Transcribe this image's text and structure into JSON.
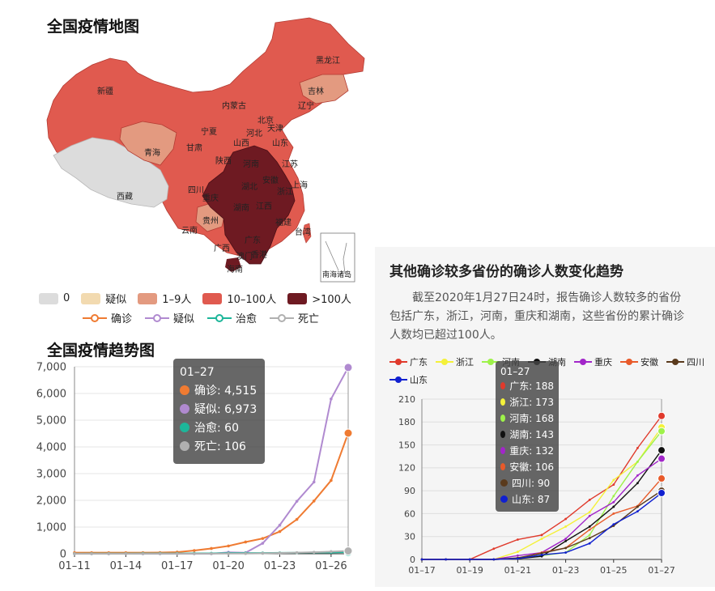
{
  "map": {
    "title": "全国疫情地图",
    "labels": [
      "黑龙江",
      "吉林",
      "辽宁",
      "内蒙古",
      "新疆",
      "宁夏",
      "河北",
      "北京",
      "天津",
      "山西",
      "甘肃",
      "山东",
      "陕西",
      "河南",
      "江苏",
      "青海",
      "西藏",
      "四川",
      "湖北",
      "安徽",
      "上海",
      "重庆",
      "浙江",
      "湖南",
      "江西",
      "贵州",
      "福建",
      "云南",
      "台湾",
      "广西",
      "广东",
      "香港",
      "澳门",
      "海南",
      "南海诸岛"
    ],
    "legend": [
      {
        "label": "0",
        "color": "#dcdcdc"
      },
      {
        "label": "疑似",
        "color": "#f2dab0"
      },
      {
        "label": "1–9人",
        "color": "#e39a80"
      },
      {
        "label": "10–100人",
        "color": "#e05a4f"
      },
      {
        "label": ">100人",
        "color": "#6e1a22"
      }
    ]
  },
  "trend": {
    "title": "全国疫情趋势图",
    "series_legend": [
      {
        "label": "确诊",
        "color": "#ef7b32"
      },
      {
        "label": "疑似",
        "color": "#b08ad0"
      },
      {
        "label": "治愈",
        "color": "#1db69a"
      },
      {
        "label": "死亡",
        "color": "#b0b0b0"
      }
    ],
    "tooltip": {
      "date": "01–27",
      "rows": [
        {
          "text": "确诊: 4,515",
          "color": "#ef7b32"
        },
        {
          "text": "疑似: 6,973",
          "color": "#b08ad0"
        },
        {
          "text": "治愈: 60",
          "color": "#1db69a"
        },
        {
          "text": "死亡: 106",
          "color": "#b0b0b0"
        }
      ]
    }
  },
  "provinces": {
    "title": "其他确诊较多省份的确诊人数变化趋势",
    "description": "截至2020年1月27日24时，报告确诊人数较多的省份包括广东，浙江，河南，重庆和湖南，这些省份的累计确诊人数均已超过100人。",
    "series_legend": [
      {
        "label": "广东",
        "color": "#e03a2c"
      },
      {
        "label": "浙江",
        "color": "#f4f13a"
      },
      {
        "label": "河南",
        "color": "#9ef24a"
      },
      {
        "label": "湖南",
        "color": "#111111"
      },
      {
        "label": "重庆",
        "color": "#a226c9"
      },
      {
        "label": "安徽",
        "color": "#e85a2a"
      },
      {
        "label": "四川",
        "color": "#5a3a1c"
      },
      {
        "label": "山东",
        "color": "#1020d0"
      }
    ],
    "tooltip": {
      "date": "01–27",
      "rows": [
        {
          "text": "广东: 188",
          "color": "#e03a2c"
        },
        {
          "text": "浙江: 173",
          "color": "#f4f13a"
        },
        {
          "text": "河南: 168",
          "color": "#9ef24a"
        },
        {
          "text": "湖南: 143",
          "color": "#111111"
        },
        {
          "text": "重庆: 132",
          "color": "#a226c9"
        },
        {
          "text": "安徽: 106",
          "color": "#e85a2a"
        },
        {
          "text": "四川: 90",
          "color": "#5a3a1c"
        },
        {
          "text": "山东: 87",
          "color": "#1020d0"
        }
      ]
    }
  },
  "chart_data": [
    {
      "type": "line",
      "title": "全国疫情趋势图",
      "x": [
        "01-11",
        "01-12",
        "01-13",
        "01-14",
        "01-15",
        "01-16",
        "01-17",
        "01-18",
        "01-19",
        "01-20",
        "01-21",
        "01-22",
        "01-23",
        "01-24",
        "01-25",
        "01-26",
        "01-27"
      ],
      "xticks": [
        "01–11",
        "01–14",
        "01–17",
        "01–20",
        "01–23",
        "01–26"
      ],
      "yticks": [
        "0",
        "1,000",
        "2,000",
        "3,000",
        "4,000",
        "5,000",
        "6,000",
        "7,000"
      ],
      "ylim": [
        0,
        7000
      ],
      "series": [
        {
          "name": "确诊",
          "color": "#ef7b32",
          "values": [
            41,
            41,
            41,
            41,
            41,
            45,
            62,
            121,
            198,
            291,
            440,
            571,
            830,
            1287,
            1975,
            2744,
            4515
          ]
        },
        {
          "name": "疑似",
          "color": "#b08ad0",
          "values": [
            0,
            0,
            0,
            0,
            0,
            0,
            0,
            0,
            0,
            54,
            37,
            393,
            1072,
            1965,
            2684,
            5794,
            6973
          ]
        },
        {
          "name": "治愈",
          "color": "#1db69a",
          "values": [
            2,
            6,
            7,
            7,
            12,
            12,
            12,
            17,
            17,
            25,
            28,
            28,
            34,
            38,
            49,
            51,
            60
          ]
        },
        {
          "name": "死亡",
          "color": "#b0b0b0",
          "values": [
            1,
            1,
            1,
            1,
            2,
            2,
            2,
            2,
            3,
            6,
            9,
            17,
            25,
            41,
            56,
            80,
            106
          ]
        }
      ]
    },
    {
      "type": "line",
      "title": "其他确诊较多省份的确诊人数变化趋势",
      "x": [
        "01-17",
        "01-18",
        "01-19",
        "01-20",
        "01-21",
        "01-22",
        "01-23",
        "01-24",
        "01-25",
        "01-26",
        "01-27"
      ],
      "xticks": [
        "01–17",
        "01–19",
        "01–21",
        "01–23",
        "01–25",
        "01–27"
      ],
      "yticks": [
        "0",
        "30",
        "60",
        "90",
        "120",
        "150",
        "180",
        "210"
      ],
      "ylim": [
        0,
        210
      ],
      "series": [
        {
          "name": "广东",
          "color": "#e03a2c",
          "values": [
            0,
            0,
            0,
            14,
            26,
            32,
            53,
            78,
            98,
            146,
            188
          ]
        },
        {
          "name": "浙江",
          "color": "#f4f13a",
          "values": [
            0,
            0,
            0,
            0,
            10,
            27,
            43,
            62,
            104,
            128,
            173
          ]
        },
        {
          "name": "河南",
          "color": "#9ef24a",
          "values": [
            0,
            0,
            0,
            0,
            1,
            5,
            9,
            32,
            83,
            128,
            168
          ]
        },
        {
          "name": "湖南",
          "color": "#111111",
          "values": [
            0,
            0,
            0,
            0,
            1,
            4,
            24,
            43,
            69,
            100,
            143
          ]
        },
        {
          "name": "重庆",
          "color": "#a226c9",
          "values": [
            0,
            0,
            0,
            0,
            5,
            9,
            27,
            57,
            75,
            110,
            132
          ]
        },
        {
          "name": "安徽",
          "color": "#e85a2a",
          "values": [
            0,
            0,
            0,
            0,
            1,
            9,
            15,
            39,
            60,
            70,
            106
          ]
        },
        {
          "name": "四川",
          "color": "#5a3a1c",
          "values": [
            0,
            0,
            0,
            0,
            2,
            8,
            15,
            28,
            44,
            69,
            90
          ]
        },
        {
          "name": "山东",
          "color": "#1020d0",
          "values": [
            0,
            0,
            0,
            0,
            1,
            6,
            9,
            21,
            46,
            63,
            87
          ]
        }
      ]
    }
  ]
}
